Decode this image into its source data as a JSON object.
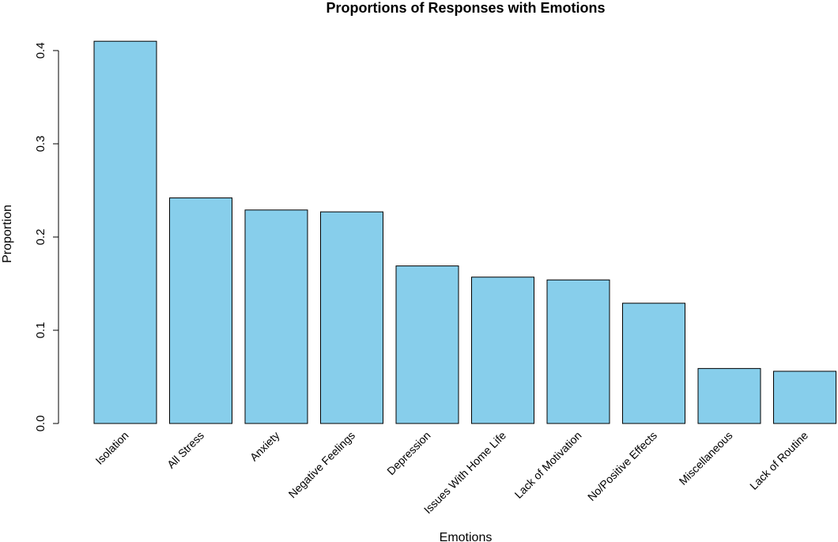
{
  "chart_data": {
    "type": "bar",
    "title": "Proportions of Responses with Emotions",
    "xlabel": "Emotions",
    "ylabel": "Proportion",
    "categories": [
      "Isolation",
      "All Stress",
      "Anxiety",
      "Negative Feelings",
      "Depression",
      "Issues With Home Life",
      "Lack of Motivation",
      "No/Positive Effects",
      "Miscellaneous",
      "Lack of Routine"
    ],
    "values": [
      0.41,
      0.242,
      0.229,
      0.227,
      0.169,
      0.157,
      0.154,
      0.129,
      0.059,
      0.056
    ],
    "yticks": [
      "0.0",
      "0.1",
      "0.2",
      "0.3",
      "0.4"
    ],
    "ylim": [
      0,
      0.4
    ],
    "bar_color": "#87CEEB",
    "bar_border_color": "#000000",
    "grid": false,
    "legend": "none"
  }
}
